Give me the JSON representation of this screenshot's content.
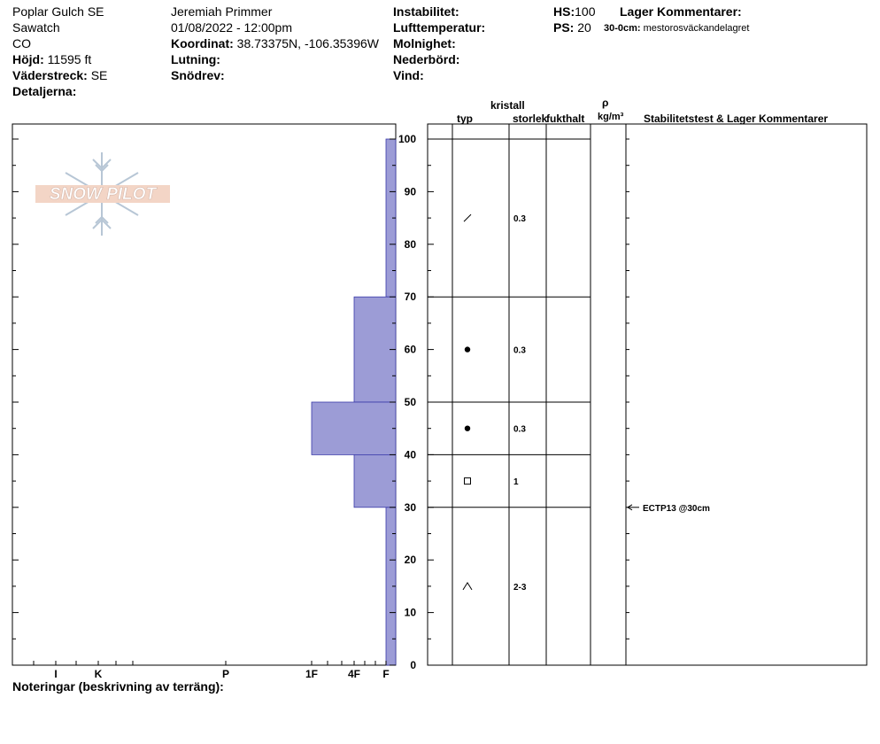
{
  "header": {
    "location": "Poplar Gulch SE",
    "range": "Sawatch",
    "state": "CO",
    "elevation_label": "Höjd:",
    "elevation_value": "11595 ft",
    "aspect_label": "Väderstreck:",
    "aspect_value": "SE",
    "details_label": "Detaljerna:",
    "observer": "Jeremiah Primmer",
    "datetime": "01/08/2022 - 12:00pm",
    "coord_label": "Koordinat:",
    "coord_value": "38.73375N, -106.35396W",
    "slope_label": "Lutning:",
    "wind_loading_label": "Snödrev:",
    "instability_label": "Instabilitet:",
    "air_temp_label": "Lufttemperatur:",
    "cloud_label": "Molnighet:",
    "precip_label": "Nederbörd:",
    "wind_label": "Vind:",
    "hs_label": "HS:",
    "hs_value": "100",
    "ps_label": "PS:",
    "ps_value": "20",
    "layer_comments_label": "Lager Kommentarer:",
    "layer_comment_range": "30-0cm:",
    "layer_comment_text": "mestorosväckandelagret"
  },
  "logo": {
    "text": "SNOW PILOT"
  },
  "columns": {
    "crystal": "kristall",
    "type": "typ",
    "size": "storlek",
    "moisture": "fukthalt",
    "rho": "ρ",
    "density_unit": "kg/m³",
    "stability": "Stabilitetstest & Lager Kommentarer"
  },
  "footer": {
    "notes_label": "Noteringar (beskrivning av terräng):"
  },
  "colors": {
    "hardness_fill": "#9c9cd6",
    "hardness_stroke": "#3a3aa8"
  },
  "chart_data": {
    "type": "bar",
    "title": "",
    "xlabel": "",
    "ylabel": "",
    "ylim": [
      0,
      100
    ],
    "y_ticks": [
      "0",
      "10",
      "20",
      "30",
      "40",
      "50",
      "60",
      "70",
      "80",
      "90",
      "100"
    ],
    "hardness_scale": [
      "I",
      "K",
      "P",
      "1F",
      "4F",
      "F"
    ],
    "hardness_scale_values": {
      "F": 1,
      "4F": 2,
      "1F": 3,
      "P": 4,
      "K": 5,
      "I": 6
    },
    "layers": [
      {
        "top": 100,
        "bottom": 70,
        "hardness": "F",
        "hardness_value": 1.0,
        "grain": "decomposing",
        "size": "0.3"
      },
      {
        "top": 70,
        "bottom": 50,
        "hardness": "4F",
        "hardness_value": 2.0,
        "grain": "rounded",
        "size": "0.3"
      },
      {
        "top": 50,
        "bottom": 40,
        "hardness": "1F",
        "hardness_value": 3.0,
        "grain": "rounded",
        "size": "0.3"
      },
      {
        "top": 40,
        "bottom": 30,
        "hardness": "4F",
        "hardness_value": 2.0,
        "grain": "faceted",
        "size": "1"
      },
      {
        "top": 30,
        "bottom": 0,
        "hardness": "F",
        "hardness_value": 1.0,
        "grain": "depth-hoar",
        "size": "2-3"
      }
    ],
    "grain_marks": [
      {
        "depth": 85,
        "grain": "decomposing",
        "size": "0.3"
      },
      {
        "depth": 60,
        "grain": "rounded",
        "size": "0.3"
      },
      {
        "depth": 45,
        "grain": "rounded",
        "size": "0.3"
      },
      {
        "depth": 35,
        "grain": "faceted",
        "size": "1"
      },
      {
        "depth": 15,
        "grain": "depth-hoar",
        "size": "2-3"
      }
    ],
    "stability_tests": [
      {
        "depth": 30,
        "label": "ECTP13 @30cm"
      }
    ]
  }
}
